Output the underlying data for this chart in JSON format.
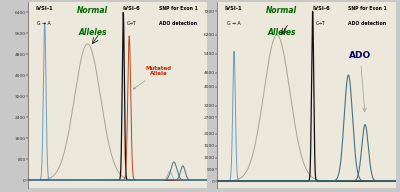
{
  "background_color": "#c8c8c8",
  "panel_bg": "#ede8dc",
  "divider_color": "#bbbbbb",
  "colors": {
    "blue_peak": "#6699bb",
    "gray_peak": "#999988",
    "black_peak": "#111111",
    "red_peak": "#bb3300",
    "teal_peak": "#336677",
    "normal_label": "#006600",
    "axis_color": "#555555",
    "tick_label": "#333333",
    "arrow_color": "#999999"
  },
  "left_panel": {
    "ytick_labels": [
      "0",
      "800",
      "1600",
      "2400",
      "3200",
      "4000",
      "4800",
      "5600",
      "6400"
    ],
    "ytick_vals": [
      0,
      800,
      1600,
      2400,
      3200,
      4000,
      4800,
      5600,
      6400
    ],
    "ymax": 6800,
    "title_ivsi1": "IVSI-1",
    "title_ivsi1_sub": "G → A",
    "title_normal": "Normal",
    "title_alleles": "Alleles",
    "title_ivsi6": "IVSI-6",
    "title_ivsi6_sub": "C→T",
    "title_snp": "SNP for Exon 1",
    "title_ado_det": "ADO detection",
    "annotation": "Mutated\nAllele",
    "annotation_color": "#cc2200"
  },
  "right_panel": {
    "ytick_labels": [
      "0",
      "500",
      "1000",
      "1500",
      "2000",
      "2700",
      "3200",
      "4000",
      "4600",
      "5400",
      "6200",
      "7200"
    ],
    "ytick_vals": [
      0,
      500,
      1000,
      1500,
      2000,
      2700,
      3200,
      4000,
      4600,
      5400,
      6200,
      7200
    ],
    "ymax": 7600,
    "title_ivsi1": "IVSI-1",
    "title_ivsi1_sub": "G → A",
    "title_normal": "Normal",
    "title_alleles": "Alleles",
    "title_ivsi6": "IVSI-6",
    "title_ivsi6_sub": "C→T",
    "title_snp": "SNP for Exon 1",
    "title_ado_det": "ADO detection",
    "annotation": "ADO",
    "annotation_color": "#000066"
  }
}
